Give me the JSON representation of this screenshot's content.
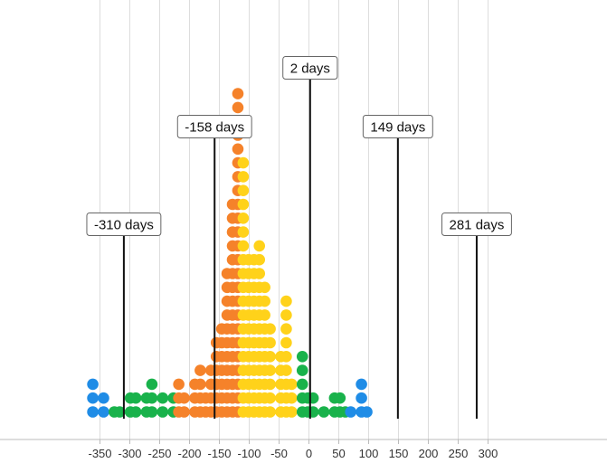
{
  "chart_data": {
    "type": "scatter",
    "subtype": "dot-histogram",
    "title": "",
    "xlabel": "",
    "ylabel": "",
    "xlim": [
      -360,
      360
    ],
    "x_ticks": [
      -350,
      -300,
      -250,
      -200,
      -150,
      -100,
      -50,
      0,
      50,
      100,
      150,
      200,
      250,
      300
    ],
    "tick_labels": [
      "-350",
      "-300",
      "-250",
      "-200",
      "-150",
      "-100",
      "-50",
      "0",
      "50",
      "100",
      "150",
      "200",
      "250",
      "300"
    ],
    "grid": "vertical",
    "bin_width": 9,
    "colors": {
      "blue": "#1f8ce6",
      "green": "#19b24b",
      "orange": "#f5822a",
      "yellow": "#ffd21a",
      "grid": "#dddddd",
      "axis": "#bbbbbb",
      "marker_line": "#111111"
    },
    "bins": [
      {
        "x": -362,
        "count": 3,
        "color": "blue"
      },
      {
        "x": -344,
        "count": 2,
        "color": "blue"
      },
      {
        "x": -326,
        "count": 1,
        "color": "green"
      },
      {
        "x": -317,
        "count": 1,
        "color": "green"
      },
      {
        "x": -299,
        "count": 2,
        "color": "green"
      },
      {
        "x": -290,
        "count": 2,
        "color": "green"
      },
      {
        "x": -272,
        "count": 2,
        "color": "green"
      },
      {
        "x": -263,
        "count": 3,
        "color": "green"
      },
      {
        "x": -245,
        "count": 2,
        "color": "green"
      },
      {
        "x": -227,
        "count": 2,
        "color": "green"
      },
      {
        "x": -218,
        "count": 3,
        "color": "orange"
      },
      {
        "x": -209,
        "count": 2,
        "color": "orange"
      },
      {
        "x": -191,
        "count": 3,
        "color": "orange"
      },
      {
        "x": -182,
        "count": 4,
        "color": "orange"
      },
      {
        "x": -173,
        "count": 2,
        "color": "orange"
      },
      {
        "x": -164,
        "count": 4,
        "color": "orange"
      },
      {
        "x": -155,
        "count": 6,
        "color": "orange"
      },
      {
        "x": -146,
        "count": 7,
        "color": "orange"
      },
      {
        "x": -137,
        "count": 11,
        "color": "orange"
      },
      {
        "x": -128,
        "count": 16,
        "color": "orange"
      },
      {
        "x": -119,
        "count": 24,
        "color": "orange"
      },
      {
        "x": -110,
        "count": 19,
        "color": "yellow"
      },
      {
        "x": -101,
        "count": 12,
        "color": "yellow"
      },
      {
        "x": -92,
        "count": 12,
        "color": "yellow"
      },
      {
        "x": -83,
        "count": 13,
        "color": "yellow"
      },
      {
        "x": -74,
        "count": 10,
        "color": "yellow"
      },
      {
        "x": -65,
        "count": 7,
        "color": "yellow"
      },
      {
        "x": -47,
        "count": 5,
        "color": "yellow"
      },
      {
        "x": -38,
        "count": 9,
        "color": "yellow"
      },
      {
        "x": -29,
        "count": 3,
        "color": "yellow"
      },
      {
        "x": -11,
        "count": 5,
        "color": "green"
      },
      {
        "x": -2,
        "count": 2,
        "color": "green"
      },
      {
        "x": 7,
        "count": 2,
        "color": "green"
      },
      {
        "x": 25,
        "count": 1,
        "color": "green"
      },
      {
        "x": 43,
        "count": 2,
        "color": "green"
      },
      {
        "x": 52,
        "count": 2,
        "color": "green"
      },
      {
        "x": 61,
        "count": 1,
        "color": "green"
      },
      {
        "x": 70,
        "count": 1,
        "color": "blue"
      },
      {
        "x": 88,
        "count": 3,
        "color": "blue"
      },
      {
        "x": 97,
        "count": 1,
        "color": "blue"
      }
    ],
    "markers": [
      {
        "x": -310,
        "label": "-310 days"
      },
      {
        "x": -158,
        "label": "-158 days"
      },
      {
        "x": 2,
        "label": "2 days"
      },
      {
        "x": 149,
        "label": "149 days"
      },
      {
        "x": 281,
        "label": "281 days"
      }
    ]
  }
}
